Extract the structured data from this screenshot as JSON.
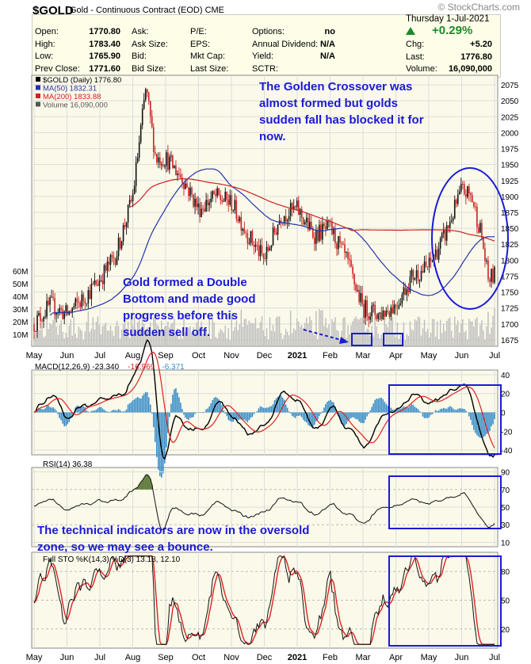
{
  "header": {
    "symbol": "$GOLD",
    "description": "Gold - Continuous Contract (EOD)",
    "exchange": "CME",
    "source": "© StockCharts.com",
    "date": "Thursday  1-Jul-2021",
    "change_pct": "+0.29%",
    "rows": [
      {
        "l1": "Open:",
        "v1": "1770.80",
        "l2": "Ask:",
        "v2": "",
        "l3": "P/E:",
        "v3": "",
        "l4": "Options:",
        "v4": "no"
      },
      {
        "l1": "High:",
        "v1": "1783.40",
        "l2": "Ask Size:",
        "v2": "",
        "l3": "EPS:",
        "v3": "",
        "l4": "Annual Dividend:",
        "v4": "N/A"
      },
      {
        "l1": "Low:",
        "v1": "1765.90",
        "l2": "Bid:",
        "v2": "",
        "l3": "Mkt Cap:",
        "v3": "",
        "l4": "Yield:",
        "v4": "N/A"
      },
      {
        "l1": "Prev Close:",
        "v1": "1771.60",
        "l2": "Bid Size:",
        "v2": "",
        "l3": "Last Size:",
        "v3": "",
        "l4": "SCTR:",
        "v4": ""
      }
    ],
    "right_rows": [
      {
        "label": "Chg:",
        "value": "+5.20"
      },
      {
        "label": "Last:",
        "value": "1776.80"
      },
      {
        "label": "Volume:",
        "value": "16,090,000"
      }
    ]
  },
  "chart_data": [
    {
      "type": "candlestick",
      "legend": [
        "$GOLD (Daily) 1776.80",
        "MA(50) 1832.31",
        "MA(200) 1833.88",
        "Volume 16,090,000"
      ],
      "colors": {
        "up": "#111111",
        "down": "#cc2222",
        "ma50": "#2233aa",
        "ma200": "#cc2222",
        "volume": "#bdbdbd"
      },
      "x_labels": [
        "May",
        "Jun",
        "Jul",
        "Aug",
        "Sep",
        "Oct",
        "Nov",
        "Dec",
        "2021",
        "Feb",
        "Mar",
        "Apr",
        "May",
        "Jun",
        "Jul"
      ],
      "y_ticks": [
        1675,
        1700,
        1725,
        1750,
        1775,
        1800,
        1825,
        1850,
        1875,
        1900,
        1925,
        1950,
        1975,
        2000,
        2025,
        2050,
        2075
      ],
      "ylim": [
        1665,
        2090
      ],
      "volume_ticks": [
        "10M",
        "20M",
        "30M",
        "40M",
        "50M",
        "60M"
      ],
      "close_path_months": [
        0,
        0.5,
        1,
        1.5,
        2,
        2.5,
        3,
        3.4,
        3.7,
        4,
        4.5,
        5,
        5.5,
        6,
        6.5,
        7,
        7.5,
        8,
        8.5,
        9,
        9.5,
        10,
        10.5,
        11,
        11.5,
        12,
        12.5,
        13,
        13.3,
        13.6,
        13.8,
        14
      ],
      "close_path_values": [
        1700,
        1730,
        1715,
        1740,
        1770,
        1810,
        1900,
        2070,
        1960,
        1960,
        1930,
        1880,
        1900,
        1890,
        1840,
        1800,
        1870,
        1880,
        1840,
        1850,
        1800,
        1725,
        1715,
        1730,
        1775,
        1790,
        1840,
        1910,
        1900,
        1840,
        1770,
        1776
      ]
    },
    {
      "type": "line",
      "legend": [
        "MACD(12,26,9) -23.340",
        "-16.969",
        "-6.371"
      ],
      "y_ticks": [
        40,
        20,
        0,
        -20,
        -40
      ],
      "ylim": [
        -45,
        45
      ]
    },
    {
      "type": "line",
      "legend": [
        "RSI(14) 36.38"
      ],
      "y_ticks": [
        90,
        70,
        50,
        30,
        10
      ],
      "ylim": [
        5,
        95
      ]
    },
    {
      "type": "line",
      "legend": [
        "Full STO %K(14,3) %D(3) 13.18, 12.10"
      ],
      "y_ticks": [
        80,
        50,
        20
      ],
      "ylim": [
        0,
        100
      ]
    }
  ],
  "annotations": {
    "top": "The Golden Crossover was almost formed but golds sudden fall has blocked it for now.",
    "mid": "Gold formed a Double Bottom and made good progress before this sudden sell off.",
    "bottom": "The technical indicators are now in the oversold zone, so we may see a bounce."
  }
}
